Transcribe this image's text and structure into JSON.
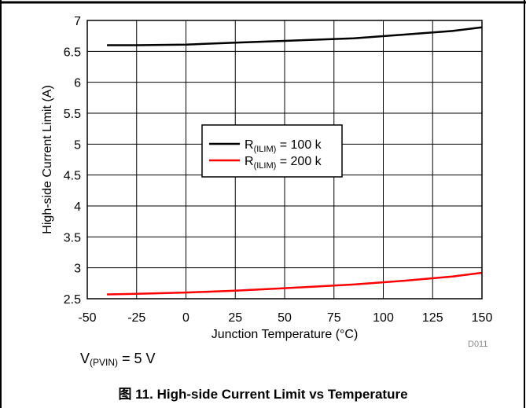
{
  "caption": "图 11. High-side Current Limit vs Temperature",
  "condition": {
    "main": "V",
    "sub": "(PVIN)",
    "rest": " = 5 V"
  },
  "figure_id": "D011",
  "chart_data": {
    "type": "line",
    "title": "",
    "xlabel": "Junction Temperature (°C)",
    "ylabel": "High-side Current Limit (A)",
    "xlim": [
      -50,
      150
    ],
    "ylim": [
      2.5,
      7
    ],
    "xticks": [
      -50,
      -25,
      0,
      25,
      50,
      75,
      100,
      125,
      150
    ],
    "yticks": [
      2.5,
      3,
      3.5,
      4,
      4.5,
      5,
      5.5,
      6,
      6.5,
      7
    ],
    "ytick_labels": [
      "2.5",
      "3",
      "3.5",
      "4",
      "4.5",
      "5",
      "5.5",
      "6",
      "6.5",
      "7"
    ],
    "grid": true,
    "legend_position": "center",
    "series": [
      {
        "name": "R(ILIM) = 100 k",
        "name_main": "R",
        "name_sub": "(ILIM)",
        "name_rest": " = 100 k",
        "color": "#000000",
        "x": [
          -40,
          -25,
          0,
          25,
          50,
          85,
          110,
          135,
          150
        ],
        "y": [
          6.6,
          6.6,
          6.61,
          6.64,
          6.67,
          6.71,
          6.77,
          6.83,
          6.89
        ]
      },
      {
        "name": "R(ILIM) = 200 k",
        "name_main": "R",
        "name_sub": "(ILIM)",
        "name_rest": " = 200 k",
        "color": "#ff0000",
        "x": [
          -40,
          -25,
          0,
          25,
          50,
          85,
          110,
          135,
          150
        ],
        "y": [
          2.57,
          2.58,
          2.6,
          2.63,
          2.67,
          2.73,
          2.79,
          2.86,
          2.92
        ]
      }
    ]
  }
}
